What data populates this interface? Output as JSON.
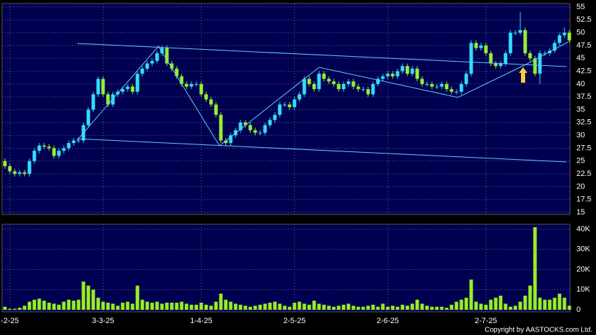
{
  "chart_data": {
    "type": "candlestick",
    "categories": [
      null,
      "-2-25",
      null,
      null,
      null,
      null,
      null,
      null,
      null,
      null,
      null,
      null,
      null,
      null,
      null,
      null,
      null,
      null,
      null,
      null,
      "3-3-25",
      null,
      null,
      null,
      null,
      null,
      null,
      null,
      null,
      null,
      null,
      null,
      null,
      null,
      null,
      null,
      null,
      null,
      null,
      null,
      "1-4-25",
      null,
      null,
      null,
      null,
      null,
      null,
      null,
      null,
      null,
      null,
      null,
      null,
      null,
      null,
      null,
      null,
      null,
      null,
      "2-5-25",
      null,
      null,
      null,
      null,
      null,
      null,
      null,
      null,
      null,
      null,
      null,
      null,
      null,
      null,
      null,
      null,
      null,
      null,
      "2-6-25",
      null,
      null,
      null,
      null,
      null,
      null,
      null,
      null,
      null,
      null,
      null,
      null,
      null,
      null,
      null,
      null,
      null,
      null,
      null,
      "2-7-25",
      null,
      null,
      null,
      null,
      null,
      null,
      null,
      null,
      null,
      null,
      null,
      null,
      null,
      null,
      null,
      null,
      null
    ],
    "open": [
      25,
      24,
      23,
      22.5,
      22.8,
      22.5,
      25,
      27,
      28,
      27.8,
      27.5,
      26,
      27,
      27.5,
      28.5,
      29,
      29,
      32,
      35,
      38,
      41,
      38,
      36,
      38,
      38.5,
      39,
      39.5,
      38.5,
      42,
      43,
      44,
      44.5,
      46,
      47,
      44,
      43,
      41.5,
      40,
      39.5,
      40,
      40,
      38,
      37,
      36,
      34,
      29,
      28.5,
      30,
      31,
      32.5,
      32,
      31,
      30.5,
      30.5,
      32,
      33,
      34,
      36,
      36,
      35.5,
      37,
      38,
      41,
      40,
      39,
      42,
      41,
      40.5,
      40,
      39,
      40,
      40.5,
      39.5,
      39,
      39,
      38,
      40,
      41,
      41.5,
      42,
      41.5,
      42.5,
      43.5,
      42,
      43,
      41,
      40,
      40,
      39.5,
      39.5,
      40,
      39,
      38.5,
      38.5,
      40,
      42,
      48,
      47,
      47.5,
      46,
      44,
      43.5,
      44,
      46,
      50,
      50,
      50.5,
      46,
      45,
      42,
      46,
      46,
      46.5,
      48,
      49.5,
      50
    ],
    "high": [
      25.5,
      24.5,
      23.5,
      23.3,
      23.3,
      25.5,
      27.5,
      28.5,
      28.5,
      28.3,
      28,
      27.5,
      28,
      29,
      29.5,
      29.5,
      32.5,
      35.5,
      38.5,
      41.5,
      41.5,
      38.5,
      38.5,
      39,
      39.5,
      40,
      40,
      42.5,
      43.5,
      44.5,
      45,
      46.5,
      47.5,
      47.5,
      44.5,
      43.5,
      42,
      40.5,
      40.5,
      40.5,
      40.5,
      38.5,
      37.5,
      36.5,
      34.5,
      29.5,
      30.5,
      31.5,
      33,
      33,
      32.5,
      31.5,
      31,
      32.5,
      33.5,
      34.5,
      36.5,
      36.5,
      36.5,
      37.5,
      38.5,
      41.5,
      41.5,
      40.5,
      42.5,
      42.5,
      41.5,
      41,
      40.5,
      40.5,
      41,
      41,
      40,
      39.5,
      39.5,
      40.5,
      41.5,
      42,
      42.5,
      42.5,
      43,
      44,
      44,
      43.5,
      43.5,
      41.5,
      40.5,
      40.5,
      40,
      40.5,
      40.5,
      39.5,
      39,
      40.5,
      42.5,
      48.5,
      48.5,
      48,
      48,
      46.5,
      44.5,
      44.5,
      46.5,
      50.5,
      50.5,
      54,
      51,
      46.5,
      45.5,
      46.5,
      46.5,
      47,
      48.5,
      50,
      51,
      50.5
    ],
    "low": [
      23.5,
      22.5,
      22,
      22,
      22,
      22,
      24.5,
      26.5,
      27.3,
      27,
      25.5,
      25.5,
      26.5,
      27,
      28,
      28.5,
      28.5,
      31.5,
      34.5,
      37.5,
      37.5,
      35.5,
      35.5,
      37.5,
      38,
      38.5,
      38,
      38,
      41.5,
      42.5,
      43.5,
      44,
      45.5,
      43.5,
      42.5,
      41,
      39.5,
      39,
      39,
      39.5,
      37.5,
      36.5,
      35.5,
      33.5,
      28.5,
      28,
      28,
      29.5,
      30.5,
      31.5,
      30.5,
      30,
      30,
      30,
      31.5,
      32.5,
      33.5,
      35.5,
      35,
      35,
      36.5,
      37.5,
      39.5,
      38.5,
      38.5,
      40.5,
      40,
      39.5,
      38.5,
      38.5,
      39.5,
      39,
      38.5,
      38.5,
      37.5,
      37.5,
      39.5,
      40.5,
      41,
      41,
      41,
      42,
      41.5,
      41.5,
      40.5,
      39.5,
      39.5,
      39,
      39,
      39,
      38.5,
      38,
      38,
      38,
      39.5,
      41.5,
      46.5,
      46.5,
      45.5,
      43.5,
      43,
      43,
      43.5,
      45.5,
      49.5,
      49.5,
      45.5,
      44.5,
      41.5,
      40,
      45.5,
      45.5,
      46,
      47.5,
      49,
      48
    ],
    "close": [
      24,
      23,
      22.5,
      22.8,
      22.5,
      25,
      27,
      28,
      27.8,
      27.5,
      26,
      27,
      27.5,
      28.5,
      29,
      29,
      32,
      35,
      38,
      41,
      38,
      36,
      38,
      38.5,
      39,
      39.5,
      38.5,
      42,
      43,
      44,
      44.5,
      46,
      47,
      44,
      43,
      41.5,
      40,
      39.5,
      40,
      40,
      38,
      37,
      36,
      34,
      29,
      28.5,
      30,
      31,
      32.5,
      32,
      31,
      30.5,
      30.5,
      32,
      33,
      34,
      36,
      36,
      35.5,
      37,
      38,
      41,
      40,
      39,
      42,
      41,
      40.5,
      40,
      39,
      40,
      40.5,
      39.5,
      39,
      39,
      38,
      40,
      41,
      41.5,
      42,
      41.5,
      42.5,
      43.5,
      42,
      43,
      41,
      40,
      40,
      39.5,
      39.5,
      40,
      39,
      38.5,
      38.5,
      40,
      42,
      48,
      47,
      47.5,
      46,
      44,
      43.5,
      44,
      46,
      50,
      50,
      50.5,
      46,
      45,
      42,
      46,
      46,
      46.5,
      48,
      49.5,
      50,
      48.5
    ],
    "up_color": "#33ddff",
    "down_color": "#99ee33",
    "ylim": [
      15,
      55
    ],
    "yticks": [
      15,
      17.5,
      20,
      22.5,
      25,
      27.5,
      30,
      32.5,
      35,
      37.5,
      40,
      42.5,
      45,
      47.5,
      50,
      52.5,
      55
    ],
    "grid": true,
    "volume": {
      "color": "#99ee22",
      "ylim": [
        0,
        40000
      ],
      "yticks": [
        0,
        {
          "value": 10000,
          "label": "10K"
        },
        {
          "value": 20000,
          "label": "20K"
        },
        {
          "value": 30000,
          "label": "30K"
        },
        {
          "value": 40000,
          "label": "40K"
        }
      ],
      "values": [
        1500,
        500,
        500,
        1000,
        2000,
        4000,
        5000,
        5500,
        4500,
        3500,
        3000,
        2500,
        4000,
        5000,
        4500,
        5000,
        14000,
        12000,
        10000,
        6000,
        4000,
        3500,
        3000,
        2000,
        3500,
        4000,
        3000,
        12000,
        5000,
        4000,
        3500,
        4000,
        3000,
        3500,
        3500,
        3500,
        4000,
        3000,
        2500,
        2500,
        3500,
        2500,
        2000,
        4000,
        8000,
        5000,
        4000,
        3000,
        2500,
        2000,
        1500,
        2000,
        2500,
        3000,
        3500,
        4000,
        3000,
        2000,
        1500,
        3500,
        4000,
        3000,
        2500,
        4500,
        3000,
        2500,
        2000,
        1500,
        2000,
        2500,
        3000,
        2000,
        1500,
        1500,
        2000,
        2500,
        1500,
        3000,
        1500,
        2000,
        1500,
        2500,
        2000,
        3000,
        5000,
        3000,
        2000,
        1500,
        1500,
        1500,
        1000,
        2500,
        4000,
        5000,
        6000,
        15000,
        4000,
        3000,
        2500,
        5000,
        6000,
        7000,
        3000,
        1500,
        2000,
        4000,
        7000,
        12000,
        41000,
        6000,
        5000,
        5000,
        6000,
        8000,
        6000,
        2000
      ]
    }
  },
  "footer": "Copyright by AASTOCKS.com Ltd."
}
